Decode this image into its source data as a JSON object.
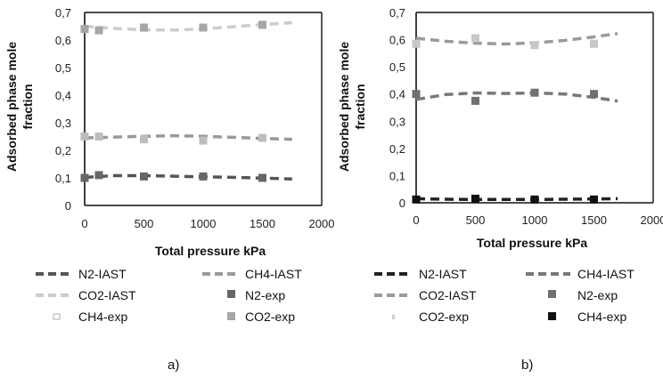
{
  "chart_data": [
    {
      "panel_label": "a)",
      "type": "line",
      "xlabel": "Total pressure kPa",
      "ylabel_lines": [
        "Adsorbed phase mole",
        "fraction"
      ],
      "xlim": [
        0,
        2000
      ],
      "ylim": [
        0,
        0.7
      ],
      "xticks": [
        "0",
        "500",
        "1000",
        "1500",
        "2000"
      ],
      "yticks": [
        "0",
        "0,1",
        "0,2",
        "0,3",
        "0,4",
        "0,5",
        "0,6",
        "0,7"
      ],
      "grid": false,
      "legend_placement": "below",
      "series": [
        {
          "name": "N2-IAST",
          "kind": "line",
          "style": "dashed",
          "color": "#555555",
          "x": [
            0,
            250,
            500,
            750,
            1000,
            1250,
            1500,
            1750
          ],
          "y": [
            0.102,
            0.108,
            0.108,
            0.106,
            0.104,
            0.102,
            0.099,
            0.096
          ]
        },
        {
          "name": "CH4-IAST",
          "kind": "line",
          "style": "dashed",
          "color": "#999999",
          "x": [
            0,
            250,
            500,
            750,
            1000,
            1250,
            1500,
            1750
          ],
          "y": [
            0.245,
            0.248,
            0.251,
            0.253,
            0.251,
            0.247,
            0.243,
            0.24
          ]
        },
        {
          "name": "CO2-IAST",
          "kind": "line",
          "style": "dashed",
          "color": "#cccccc",
          "x": [
            0,
            250,
            500,
            750,
            1000,
            1250,
            1500,
            1750
          ],
          "y": [
            0.65,
            0.642,
            0.637,
            0.636,
            0.64,
            0.648,
            0.656,
            0.663
          ]
        },
        {
          "name": "N2-exp",
          "kind": "marker",
          "color": "#666666",
          "x": [
            0,
            120,
            500,
            1000,
            1500
          ],
          "y": [
            0.1,
            0.11,
            0.105,
            0.105,
            0.1
          ]
        },
        {
          "name": "CH4-exp",
          "kind": "marker",
          "color": "#bdbdbd",
          "x": [
            0,
            120,
            500,
            1000,
            1500
          ],
          "y": [
            0.25,
            0.25,
            0.24,
            0.235,
            0.245
          ]
        },
        {
          "name": "CO2-exp",
          "kind": "marker",
          "color": "#a6a6a6",
          "x": [
            0,
            120,
            500,
            1000,
            1500
          ],
          "y": [
            0.64,
            0.635,
            0.645,
            0.645,
            0.655
          ]
        }
      ],
      "legend": [
        "N2-IAST",
        "CH4-IAST",
        "CO2-IAST",
        "N2-exp",
        "CH4-exp",
        "CO2-exp"
      ]
    },
    {
      "panel_label": "b)",
      "type": "line",
      "xlabel": "Total pressure kPa",
      "ylabel_lines": [
        "Adsorbed phase mole",
        "fraction"
      ],
      "xlim": [
        0,
        2000
      ],
      "ylim": [
        0,
        0.7
      ],
      "xticks": [
        "0",
        "500",
        "1000",
        "1500",
        "2000"
      ],
      "yticks": [
        "0",
        "0,1",
        "0,2",
        "0,3",
        "0,4",
        "0,5",
        "0,6",
        "0,7"
      ],
      "grid": false,
      "legend_placement": "below",
      "series": [
        {
          "name": "N2-IAST",
          "kind": "line",
          "style": "dashed",
          "color": "#222222",
          "x": [
            0,
            250,
            500,
            750,
            1000,
            1250,
            1500,
            1700
          ],
          "y": [
            0.015,
            0.013,
            0.012,
            0.012,
            0.012,
            0.013,
            0.014,
            0.015
          ]
        },
        {
          "name": "CH4-IAST",
          "kind": "line",
          "style": "dashed",
          "color": "#777777",
          "x": [
            0,
            250,
            500,
            750,
            1000,
            1250,
            1500,
            1700
          ],
          "y": [
            0.38,
            0.398,
            0.404,
            0.402,
            0.404,
            0.4,
            0.388,
            0.374
          ]
        },
        {
          "name": "CO2-IAST",
          "kind": "line",
          "style": "dashed",
          "color": "#9a9a9a",
          "x": [
            0,
            250,
            500,
            750,
            1000,
            1250,
            1500,
            1700
          ],
          "y": [
            0.605,
            0.594,
            0.587,
            0.584,
            0.588,
            0.597,
            0.61,
            0.622
          ]
        },
        {
          "name": "N2-exp",
          "kind": "marker",
          "color": "#707070",
          "x": [
            0,
            500,
            1000,
            1500
          ],
          "y": [
            0.4,
            0.375,
            0.405,
            0.4
          ]
        },
        {
          "name": "CO2-exp",
          "kind": "marker",
          "color": "#c8c8c8",
          "x": [
            0,
            500,
            1000,
            1500
          ],
          "y": [
            0.585,
            0.605,
            0.58,
            0.585
          ]
        },
        {
          "name": "CH4-exp",
          "kind": "marker",
          "color": "#111111",
          "x": [
            0,
            500,
            1000,
            1500
          ],
          "y": [
            0.012,
            0.015,
            0.012,
            0.012
          ]
        }
      ],
      "legend": [
        "N2-IAST",
        "CH4-IAST",
        "CO2-IAST",
        "N2-exp",
        "CO2-exp",
        "CH4-exp"
      ]
    }
  ]
}
